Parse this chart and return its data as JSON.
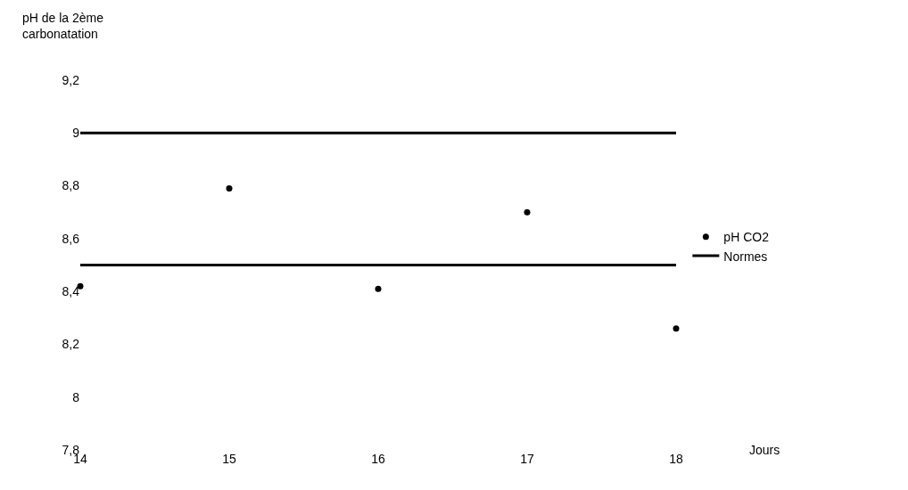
{
  "chart_data": {
    "type": "scatter",
    "annotations": [
      "Jours"
    ],
    "ylabel": "pH de la 2ème carbonatation",
    "series": [
      {
        "name": "pH CO2",
        "color": "#000000",
        "marker": "circle",
        "x": [
          14,
          15,
          16,
          17,
          18
        ],
        "values": [
          8.42,
          8.79,
          8.41,
          8.7,
          8.26
        ]
      },
      {
        "name": "Normes",
        "type": "line",
        "color": "#000000",
        "line_style": "solid",
        "marker": "none",
        "x": [
          14,
          18
        ],
        "values": [
          9,
          9
        ]
      },
      {
        "type": "line",
        "color": "#000000",
        "line_style": "solid",
        "marker": "none",
        "x": [
          14,
          18
        ],
        "values": [
          8.5,
          8.5
        ]
      }
    ],
    "xlim": [
      14,
      18
    ],
    "xticks": [
      14,
      15,
      16,
      17,
      18
    ],
    "ylim": [
      7.8,
      9.2
    ],
    "yticks": [
      {
        "value": 7.8,
        "label": "7,8"
      },
      {
        "value": 8,
        "label": "8"
      },
      {
        "value": 8.2,
        "label": "8,2"
      },
      {
        "value": 8.4,
        "label": "8,4"
      },
      {
        "value": 8.6,
        "label": "8,6"
      },
      {
        "value": 8.8,
        "label": "8,8"
      },
      {
        "value": 9,
        "label": "9"
      },
      {
        "value": 9.2,
        "label": "9,2"
      }
    ],
    "grid": false,
    "legend": "right"
  }
}
